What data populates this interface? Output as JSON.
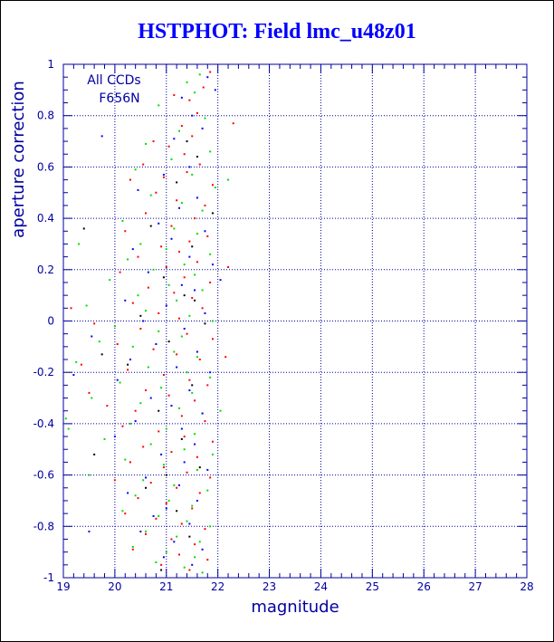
{
  "title": "HSTPHOT: Field lmc_u48z01",
  "colors": {
    "axis": "#0000a0",
    "grid": "#0000a0",
    "title": "#0000ff",
    "annotation": "#0000a0"
  },
  "chart_data": {
    "type": "scatter",
    "title": "HSTPHOT: Field lmc_u48z01",
    "xlabel": "magnitude",
    "ylabel": "aperture correction",
    "xlim": [
      19,
      28
    ],
    "ylim": [
      -1,
      1
    ],
    "x_ticks": [
      "19",
      "20",
      "21",
      "22",
      "23",
      "24",
      "25",
      "26",
      "27",
      "28"
    ],
    "y_ticks": [
      "-1",
      "-0.8",
      "-0.6",
      "-0.4",
      "-0.2",
      "0",
      "0.2",
      "0.4",
      "0.6",
      "0.8",
      "1"
    ],
    "x_tick_values": [
      19,
      20,
      21,
      22,
      23,
      24,
      25,
      26,
      27,
      28
    ],
    "y_tick_values": [
      -1,
      -0.8,
      -0.6,
      -0.4,
      -0.2,
      0,
      0.2,
      0.4,
      0.6,
      0.8,
      1
    ],
    "grid": true,
    "annotation": [
      "All CCDs",
      "F656N"
    ],
    "series": [
      {
        "color": "#ff0000",
        "points": [
          [
            21.85,
            0.97
          ],
          [
            21.72,
            0.91
          ],
          [
            21.15,
            0.88
          ],
          [
            21.45,
            0.86
          ],
          [
            21.6,
            0.81
          ],
          [
            21.3,
            0.76
          ],
          [
            21.5,
            0.72
          ],
          [
            20.75,
            0.7
          ],
          [
            21.05,
            0.68
          ],
          [
            21.35,
            0.65
          ],
          [
            20.55,
            0.61
          ],
          [
            21.65,
            0.61
          ],
          [
            21.4,
            0.58
          ],
          [
            20.95,
            0.56
          ],
          [
            20.3,
            0.55
          ],
          [
            21.9,
            0.53
          ],
          [
            20.8,
            0.5
          ],
          [
            21.2,
            0.47
          ],
          [
            21.75,
            0.45
          ],
          [
            20.6,
            0.42
          ],
          [
            21.55,
            0.4
          ],
          [
            21.1,
            0.37
          ],
          [
            20.2,
            0.35
          ],
          [
            21.8,
            0.33
          ],
          [
            21.45,
            0.31
          ],
          [
            20.9,
            0.29
          ],
          [
            21.25,
            0.27
          ],
          [
            20.45,
            0.25
          ],
          [
            21.6,
            0.23
          ],
          [
            21.0,
            0.21
          ],
          [
            20.1,
            0.19
          ],
          [
            21.35,
            0.17
          ],
          [
            21.85,
            0.15
          ],
          [
            20.65,
            0.13
          ],
          [
            21.15,
            0.11
          ],
          [
            21.5,
            0.09
          ],
          [
            20.35,
            0.07
          ],
          [
            21.7,
            0.05
          ],
          [
            20.85,
            0.03
          ],
          [
            21.25,
            0.01
          ],
          [
            19.6,
            -0.01
          ],
          [
            20.5,
            -0.03
          ],
          [
            21.4,
            -0.05
          ],
          [
            21.9,
            -0.07
          ],
          [
            20.05,
            -0.09
          ],
          [
            20.75,
            -0.11
          ],
          [
            21.2,
            -0.13
          ],
          [
            21.65,
            -0.15
          ],
          [
            19.35,
            -0.17
          ],
          [
            20.25,
            -0.19
          ],
          [
            20.95,
            -0.21
          ],
          [
            21.45,
            -0.23
          ],
          [
            21.8,
            -0.25
          ],
          [
            20.6,
            -0.27
          ],
          [
            21.05,
            -0.29
          ],
          [
            21.55,
            -0.31
          ],
          [
            19.85,
            -0.33
          ],
          [
            20.4,
            -0.35
          ],
          [
            21.3,
            -0.37
          ],
          [
            21.75,
            -0.39
          ],
          [
            20.15,
            -0.41
          ],
          [
            20.85,
            -0.43
          ],
          [
            21.35,
            -0.45
          ],
          [
            21.9,
            -0.47
          ],
          [
            20.55,
            -0.49
          ],
          [
            21.1,
            -0.51
          ],
          [
            21.6,
            -0.53
          ],
          [
            20.3,
            -0.55
          ],
          [
            20.95,
            -0.57
          ],
          [
            21.4,
            -0.59
          ],
          [
            21.85,
            -0.61
          ],
          [
            20.7,
            -0.63
          ],
          [
            21.2,
            -0.65
          ],
          [
            21.65,
            -0.67
          ],
          [
            20.45,
            -0.69
          ],
          [
            21.0,
            -0.71
          ],
          [
            21.5,
            -0.73
          ],
          [
            20.2,
            -0.75
          ],
          [
            20.8,
            -0.77
          ],
          [
            21.3,
            -0.79
          ],
          [
            21.75,
            -0.81
          ],
          [
            20.6,
            -0.83
          ],
          [
            21.1,
            -0.85
          ],
          [
            21.55,
            -0.87
          ],
          [
            20.35,
            -0.89
          ],
          [
            21.25,
            -0.91
          ],
          [
            21.8,
            -0.93
          ],
          [
            20.9,
            -0.95
          ],
          [
            21.45,
            -0.97
          ],
          [
            22.3,
            0.77
          ],
          [
            22.2,
            0.21
          ],
          [
            22.15,
            -0.14
          ],
          [
            19.15,
            0.05
          ],
          [
            19.5,
            -0.28
          ],
          [
            20.0,
            -0.62
          ]
        ]
      },
      {
        "color": "#00dd00",
        "points": [
          [
            21.65,
            0.96
          ],
          [
            21.4,
            0.93
          ],
          [
            21.55,
            0.89
          ],
          [
            20.85,
            0.84
          ],
          [
            21.75,
            0.79
          ],
          [
            21.25,
            0.74
          ],
          [
            20.6,
            0.69
          ],
          [
            21.85,
            0.66
          ],
          [
            21.1,
            0.63
          ],
          [
            20.4,
            0.59
          ],
          [
            21.5,
            0.57
          ],
          [
            21.95,
            0.52
          ],
          [
            20.7,
            0.49
          ],
          [
            21.3,
            0.46
          ],
          [
            21.7,
            0.43
          ],
          [
            20.15,
            0.39
          ],
          [
            21.15,
            0.36
          ],
          [
            21.6,
            0.34
          ],
          [
            20.5,
            0.3
          ],
          [
            21.0,
            0.28
          ],
          [
            21.85,
            0.26
          ],
          [
            20.25,
            0.24
          ],
          [
            21.35,
            0.22
          ],
          [
            20.75,
            0.2
          ],
          [
            21.55,
            0.18
          ],
          [
            19.9,
            0.16
          ],
          [
            21.05,
            0.14
          ],
          [
            21.7,
            0.12
          ],
          [
            20.45,
            0.1
          ],
          [
            21.2,
            0.08
          ],
          [
            19.45,
            0.06
          ],
          [
            20.6,
            0.04
          ],
          [
            21.45,
            0.02
          ],
          [
            21.9,
            0.0
          ],
          [
            20.0,
            -0.02
          ],
          [
            20.85,
            -0.04
          ],
          [
            21.3,
            -0.06
          ],
          [
            19.7,
            -0.08
          ],
          [
            20.35,
            -0.1
          ],
          [
            21.15,
            -0.12
          ],
          [
            21.6,
            -0.14
          ],
          [
            19.25,
            -0.16
          ],
          [
            20.65,
            -0.18
          ],
          [
            21.4,
            -0.2
          ],
          [
            21.85,
            -0.22
          ],
          [
            20.1,
            -0.24
          ],
          [
            20.9,
            -0.26
          ],
          [
            21.5,
            -0.28
          ],
          [
            19.55,
            -0.3
          ],
          [
            20.5,
            -0.32
          ],
          [
            21.25,
            -0.34
          ],
          [
            21.7,
            -0.36
          ],
          [
            19.05,
            -0.38
          ],
          [
            20.3,
            -0.4
          ],
          [
            21.0,
            -0.42
          ],
          [
            21.55,
            -0.44
          ],
          [
            19.8,
            -0.46
          ],
          [
            20.7,
            -0.48
          ],
          [
            21.35,
            -0.5
          ],
          [
            21.9,
            -0.52
          ],
          [
            20.2,
            -0.54
          ],
          [
            20.95,
            -0.56
          ],
          [
            21.6,
            -0.58
          ],
          [
            19.5,
            -0.6
          ],
          [
            20.55,
            -0.62
          ],
          [
            21.15,
            -0.64
          ],
          [
            21.8,
            -0.66
          ],
          [
            20.4,
            -0.68
          ],
          [
            21.05,
            -0.7
          ],
          [
            21.5,
            -0.72
          ],
          [
            20.15,
            -0.74
          ],
          [
            20.85,
            -0.76
          ],
          [
            21.4,
            -0.78
          ],
          [
            21.85,
            -0.8
          ],
          [
            20.6,
            -0.82
          ],
          [
            21.2,
            -0.84
          ],
          [
            21.65,
            -0.86
          ],
          [
            20.35,
            -0.88
          ],
          [
            21.0,
            -0.9
          ],
          [
            21.55,
            -0.92
          ],
          [
            20.8,
            -0.94
          ],
          [
            21.35,
            -0.96
          ],
          [
            21.7,
            -0.98
          ],
          [
            22.2,
            0.55
          ],
          [
            22.05,
            -0.35
          ],
          [
            19.1,
            -0.42
          ],
          [
            19.3,
            0.3
          ]
        ]
      },
      {
        "color": "#0000ff",
        "points": [
          [
            21.8,
            0.95
          ],
          [
            21.95,
            0.9
          ],
          [
            21.3,
            0.87
          ],
          [
            21.5,
            0.8
          ],
          [
            21.7,
            0.75
          ],
          [
            21.15,
            0.71
          ],
          [
            21.45,
            0.6
          ],
          [
            20.95,
            0.57
          ],
          [
            20.45,
            0.51
          ],
          [
            21.6,
            0.48
          ],
          [
            21.25,
            0.44
          ],
          [
            20.85,
            0.38
          ],
          [
            21.75,
            0.35
          ],
          [
            21.1,
            0.32
          ],
          [
            20.35,
            0.28
          ],
          [
            21.45,
            0.25
          ],
          [
            21.9,
            0.22
          ],
          [
            20.65,
            0.19
          ],
          [
            21.3,
            0.14
          ],
          [
            21.55,
            0.12
          ],
          [
            20.2,
            0.08
          ],
          [
            21.0,
            0.06
          ],
          [
            21.75,
            0.03
          ],
          [
            20.55,
            0.0
          ],
          [
            21.35,
            -0.03
          ],
          [
            19.55,
            -0.06
          ],
          [
            20.8,
            -0.09
          ],
          [
            21.6,
            -0.12
          ],
          [
            20.3,
            -0.15
          ],
          [
            21.2,
            -0.18
          ],
          [
            21.85,
            -0.2
          ],
          [
            20.05,
            -0.23
          ],
          [
            21.45,
            -0.27
          ],
          [
            20.7,
            -0.3
          ],
          [
            21.1,
            -0.33
          ],
          [
            21.7,
            -0.36
          ],
          [
            20.4,
            -0.39
          ],
          [
            21.3,
            -0.42
          ],
          [
            20.0,
            -0.45
          ],
          [
            21.55,
            -0.48
          ],
          [
            20.9,
            -0.52
          ],
          [
            21.35,
            -0.55
          ],
          [
            21.8,
            -0.58
          ],
          [
            20.6,
            -0.61
          ],
          [
            21.25,
            -0.64
          ],
          [
            20.25,
            -0.67
          ],
          [
            21.6,
            -0.7
          ],
          [
            21.0,
            -0.73
          ],
          [
            20.75,
            -0.76
          ],
          [
            21.45,
            -0.79
          ],
          [
            20.5,
            -0.82
          ],
          [
            21.15,
            -0.86
          ],
          [
            21.7,
            -0.89
          ],
          [
            20.95,
            -0.92
          ],
          [
            21.5,
            -0.95
          ],
          [
            19.75,
            0.72
          ],
          [
            19.2,
            -0.21
          ],
          [
            19.5,
            -0.82
          ],
          [
            22.05,
            0.16
          ]
        ]
      },
      {
        "color": "#000000",
        "points": [
          [
            21.4,
            0.7
          ],
          [
            21.6,
            0.64
          ],
          [
            21.2,
            0.54
          ],
          [
            20.7,
            0.37
          ],
          [
            21.5,
            0.29
          ],
          [
            20.95,
            0.17
          ],
          [
            21.35,
            0.1
          ],
          [
            20.5,
            0.02
          ],
          [
            21.75,
            -0.01
          ],
          [
            21.05,
            -0.08
          ],
          [
            20.25,
            -0.17
          ],
          [
            21.5,
            -0.25
          ],
          [
            20.85,
            -0.35
          ],
          [
            21.3,
            -0.46
          ],
          [
            21.65,
            -0.57
          ],
          [
            20.6,
            -0.65
          ],
          [
            21.2,
            -0.74
          ],
          [
            21.45,
            -0.84
          ],
          [
            20.9,
            -0.97
          ],
          [
            19.4,
            0.36
          ],
          [
            19.75,
            -0.13
          ],
          [
            19.6,
            -0.52
          ],
          [
            21.9,
            0.42
          ],
          [
            21.0,
            -0.6
          ],
          [
            21.55,
            0.08
          ]
        ]
      }
    ]
  }
}
